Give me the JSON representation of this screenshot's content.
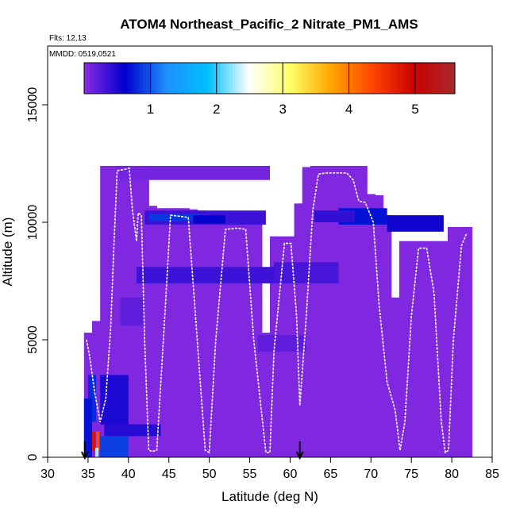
{
  "chart_data": {
    "type": "heatmap",
    "title": "ATOM4 Northeast_Pacific_2 Nitrate_PM1_AMS",
    "annotations": [
      "Flts: 12,13",
      "MMDD: 0519,0521"
    ],
    "xlabel": "Latitude (deg N)",
    "ylabel": "Altitude (m)",
    "xlim": [
      30,
      85
    ],
    "ylim": [
      0,
      17500
    ],
    "x_ticks": [
      30,
      35,
      40,
      45,
      50,
      55,
      60,
      65,
      70,
      75,
      80,
      85
    ],
    "y_ticks": [
      0,
      5000,
      10000,
      15000
    ],
    "colorbar": {
      "range": [
        0,
        5.6
      ],
      "ticks": [
        1,
        2,
        3,
        4,
        5
      ],
      "colors": [
        "#8a2be2",
        "#0000cd",
        "#1e90ff",
        "#00bfff",
        "#ffffff",
        "#ffff66",
        "#ffa500",
        "#ff4500",
        "#cc0000",
        "#a52a2a"
      ]
    },
    "arrows_at_latitude": [
      34.6,
      61.2
    ],
    "background_value": 0.05,
    "curtain_bins": [
      {
        "x": [
          38.5,
          57.5
        ],
        "y": [
          11800,
          12400
        ],
        "value": 0.1
      },
      {
        "x": [
          42,
          57
        ],
        "y": [
          9900,
          10500
        ],
        "value": 0.35
      },
      {
        "x": [
          42.5,
          49
        ],
        "y": [
          10050,
          10350
        ],
        "value": 0.85
      },
      {
        "x": [
          48,
          52
        ],
        "y": [
          9950,
          10300
        ],
        "value": 0.6
      },
      {
        "x": [
          66,
          72
        ],
        "y": [
          9900,
          10600
        ],
        "value": 0.7
      },
      {
        "x": [
          72,
          79
        ],
        "y": [
          9600,
          10300
        ],
        "value": 0.55
      },
      {
        "x": [
          63,
          68
        ],
        "y": [
          10000,
          10500
        ],
        "value": 0.4
      },
      {
        "x": [
          41,
          60
        ],
        "y": [
          7400,
          8100
        ],
        "value": 0.35
      },
      {
        "x": [
          58,
          66
        ],
        "y": [
          7400,
          8300
        ],
        "value": 0.3
      },
      {
        "x": [
          37,
          44
        ],
        "y": [
          900,
          1400
        ],
        "value": 0.45
      },
      {
        "x": [
          36.5,
          40
        ],
        "y": [
          1400,
          3500
        ],
        "value": 0.5
      },
      {
        "x": [
          35,
          36
        ],
        "y": [
          1500,
          3500
        ],
        "value": 0.8
      },
      {
        "x": [
          34.5,
          35.5
        ],
        "y": [
          0,
          2500
        ],
        "value": 0.7
      },
      {
        "x": [
          36.5,
          40
        ],
        "y": [
          0,
          900
        ],
        "value": 0.9
      },
      {
        "x": [
          35.5,
          35.9
        ],
        "y": [
          300,
          1100
        ],
        "value": 4.8
      },
      {
        "x": [
          36.0,
          36.4
        ],
        "y": [
          300,
          1100
        ],
        "value": 4.3
      },
      {
        "x": [
          35.9,
          36.3
        ],
        "y": [
          0,
          400
        ],
        "value": 2.3
      },
      {
        "x": [
          39,
          42
        ],
        "y": [
          5600,
          6800
        ],
        "value": 0.2
      },
      {
        "x": [
          56,
          62
        ],
        "y": [
          4500,
          5200
        ],
        "value": 0.2
      }
    ],
    "flight_track": [
      [
        34.8,
        5000
      ],
      [
        35.2,
        4300
      ],
      [
        35.8,
        2800
      ],
      [
        36.5,
        1500
      ],
      [
        37.2,
        2500
      ],
      [
        37.8,
        5500
      ],
      [
        38.2,
        9000
      ],
      [
        38.6,
        12200
      ],
      [
        39.5,
        12250
      ],
      [
        40.1,
        12300
      ],
      [
        40.5,
        10500
      ],
      [
        41.0,
        9200
      ],
      [
        41.2,
        10400
      ],
      [
        41.6,
        10300
      ],
      [
        42.0,
        5000
      ],
      [
        42.5,
        300
      ],
      [
        43.0,
        250
      ],
      [
        43.5,
        300
      ],
      [
        44.5,
        6000
      ],
      [
        45.2,
        10300
      ],
      [
        46.5,
        10250
      ],
      [
        47.4,
        10200
      ],
      [
        48.3,
        6000
      ],
      [
        49.5,
        300
      ],
      [
        50.0,
        200
      ],
      [
        50.8,
        5000
      ],
      [
        52.0,
        9700
      ],
      [
        53.5,
        9750
      ],
      [
        54.5,
        9700
      ],
      [
        55.5,
        5000
      ],
      [
        57.0,
        200
      ],
      [
        57.5,
        200
      ],
      [
        58.0,
        4500
      ],
      [
        59.3,
        9100
      ],
      [
        60.1,
        9100
      ],
      [
        60.8,
        6000
      ],
      [
        61.2,
        2200
      ],
      [
        62.0,
        6000
      ],
      [
        62.8,
        10500
      ],
      [
        63.5,
        12050
      ],
      [
        64.5,
        12100
      ],
      [
        67.0,
        12100
      ],
      [
        67.8,
        11800
      ],
      [
        68.5,
        10900
      ],
      [
        69.3,
        10850
      ],
      [
        70.3,
        10000
      ],
      [
        71.0,
        6500
      ],
      [
        72.0,
        3200
      ],
      [
        73.0,
        2000
      ],
      [
        73.6,
        300
      ],
      [
        74.2,
        1500
      ],
      [
        75.0,
        6000
      ],
      [
        75.9,
        8900
      ],
      [
        76.9,
        8900
      ],
      [
        77.8,
        7000
      ],
      [
        78.7,
        1500
      ],
      [
        79.2,
        200
      ],
      [
        79.6,
        300
      ],
      [
        80.2,
        5000
      ],
      [
        81.2,
        9000
      ],
      [
        81.8,
        9500
      ]
    ]
  }
}
